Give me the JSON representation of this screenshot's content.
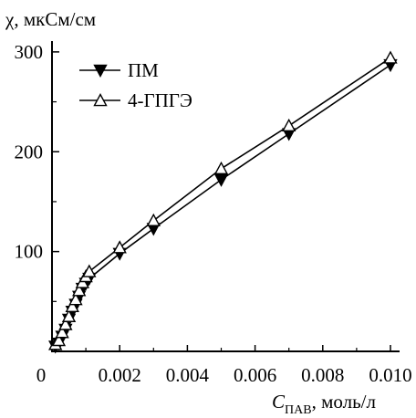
{
  "chart_data": {
    "type": "line",
    "ylabel": "χ, мкСм/см",
    "xlabel_main": "C",
    "xlabel_sub": "ПАВ",
    "xlabel_unit": ", моль/л",
    "xlim": [
      0,
      0.01
    ],
    "ylim": [
      0,
      320
    ],
    "x_ticks": [
      0,
      0.002,
      0.004,
      0.006,
      0.008,
      0.01
    ],
    "x_tick_labels": [
      "0",
      "0.002",
      "0.004",
      "0.006",
      "0.008",
      "0.010"
    ],
    "y_ticks": [
      100,
      200,
      300
    ],
    "y_tick_labels": [
      "100",
      "200",
      "300"
    ],
    "grid": false,
    "legend_position": "top-left",
    "series": [
      {
        "name": "ПМ",
        "marker": "filled-down-triangle",
        "color": "#000000",
        "points": [
          [
            0.0001,
            5
          ],
          [
            0.0002,
            8
          ],
          [
            0.0003,
            15
          ],
          [
            0.0004,
            22
          ],
          [
            0.0005,
            32
          ],
          [
            0.0006,
            40
          ],
          [
            0.0007,
            47
          ],
          [
            0.0008,
            55
          ],
          [
            0.0009,
            63
          ],
          [
            0.001,
            68
          ],
          [
            0.0011,
            73
          ],
          [
            0.002,
            98
          ],
          [
            0.003,
            123
          ],
          [
            0.005,
            172
          ],
          [
            0.007,
            218
          ],
          [
            0.01,
            287
          ]
        ]
      },
      {
        "name": "4-ГПГЭ",
        "marker": "open-up-triangle",
        "color": "#000000",
        "points": [
          [
            0.0001,
            7
          ],
          [
            0.0002,
            11
          ],
          [
            0.0003,
            19
          ],
          [
            0.0004,
            27
          ],
          [
            0.0005,
            35
          ],
          [
            0.0006,
            45
          ],
          [
            0.0007,
            52
          ],
          [
            0.0008,
            61
          ],
          [
            0.0009,
            69
          ],
          [
            0.001,
            75
          ],
          [
            0.0011,
            80
          ],
          [
            0.002,
            104
          ],
          [
            0.003,
            131
          ],
          [
            0.005,
            183
          ],
          [
            0.007,
            226
          ],
          [
            0.01,
            294
          ]
        ]
      }
    ]
  }
}
